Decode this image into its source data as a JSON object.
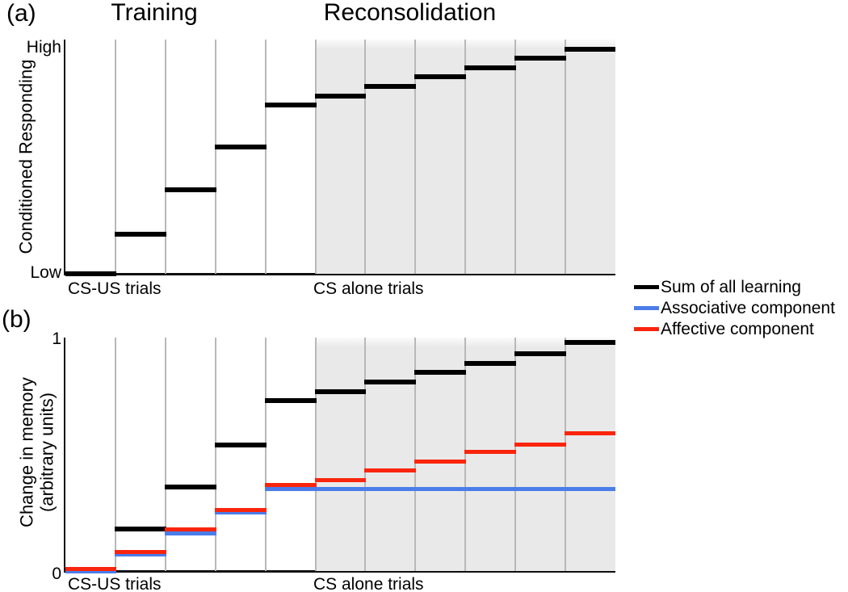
{
  "figure": {
    "panel_a_label": "(a)",
    "panel_b_label": "(b)",
    "training_title": "Training",
    "reconsolidation_title": "Reconsolidation"
  },
  "panel_a": {
    "y_label": "Conditioned Responding",
    "y_tick_top": "High",
    "y_tick_bottom": "Low",
    "x_label_training": "CS-US trials",
    "x_label_reconsolidation": "CS alone trials"
  },
  "panel_b": {
    "y_label_line1": "Change in memory",
    "y_label_line2": "(arbitrary units)",
    "y_tick_top": "1",
    "y_tick_bottom": "0",
    "x_label_training": "CS-US trials",
    "x_label_reconsolidation": "CS alone trials"
  },
  "legend": {
    "items": [
      {
        "label": "Sum of all learning",
        "color": "#000000"
      },
      {
        "label": "Associative component",
        "color": "#4a7de9"
      },
      {
        "label": "Affective component",
        "color": "#fa250d"
      }
    ]
  },
  "colors": {
    "sum_of_all_learning": "#000000",
    "associative_component": "#4a7de9",
    "affective_component": "#fa250d",
    "shaded_region": "#e9e9e9",
    "gridline": "#b8b8b8"
  },
  "chart_data": [
    {
      "panel": "a",
      "type": "bar",
      "title_left": "Training",
      "title_right": "Reconsolidation",
      "ylabel": "Conditioned Responding",
      "yticks": [
        "Low",
        "High"
      ],
      "ylim": [
        0,
        1
      ],
      "trials": [
        1,
        2,
        3,
        4,
        5,
        6,
        7,
        8,
        9,
        10,
        11
      ],
      "shaded_from_trial": 6,
      "x_sections": [
        {
          "label": "CS-US trials",
          "phase": "Training",
          "trials": [
            1,
            5
          ]
        },
        {
          "label": "CS alone trials",
          "phase": "Reconsolidation",
          "trials": [
            6,
            11
          ]
        }
      ],
      "series": [
        {
          "name": "Conditioned responding",
          "color": "#000000",
          "values": [
            0,
            0.17,
            0.36,
            0.54,
            0.72,
            0.76,
            0.8,
            0.84,
            0.88,
            0.92,
            0.96
          ]
        }
      ]
    },
    {
      "panel": "b",
      "type": "bar",
      "ylabel": "Change in memory (arbitrary units)",
      "yticks": [
        0,
        1
      ],
      "ylim": [
        0,
        1
      ],
      "trials": [
        1,
        2,
        3,
        4,
        5,
        6,
        7,
        8,
        9,
        10,
        11
      ],
      "shaded_from_trial": 6,
      "x_sections": [
        {
          "label": "CS-US trials",
          "phase": "Training",
          "trials": [
            1,
            5
          ]
        },
        {
          "label": "CS alone trials",
          "phase": "Reconsolidation",
          "trials": [
            6,
            11
          ]
        }
      ],
      "series": [
        {
          "name": "Sum of all learning",
          "color": "#000000",
          "values": [
            0,
            0.18,
            0.36,
            0.54,
            0.73,
            0.77,
            0.81,
            0.85,
            0.89,
            0.93,
            0.98
          ]
        },
        {
          "name": "Associative component",
          "color": "#4a7de9",
          "values": [
            0,
            0.07,
            0.16,
            0.25,
            0.35,
            0.35,
            0.35,
            0.35,
            0.35,
            0.35,
            0.35
          ]
        },
        {
          "name": "Affective component",
          "color": "#fa250d",
          "values": [
            0.01,
            0.08,
            0.18,
            0.26,
            0.37,
            0.39,
            0.43,
            0.47,
            0.51,
            0.54,
            0.59
          ]
        }
      ]
    }
  ]
}
